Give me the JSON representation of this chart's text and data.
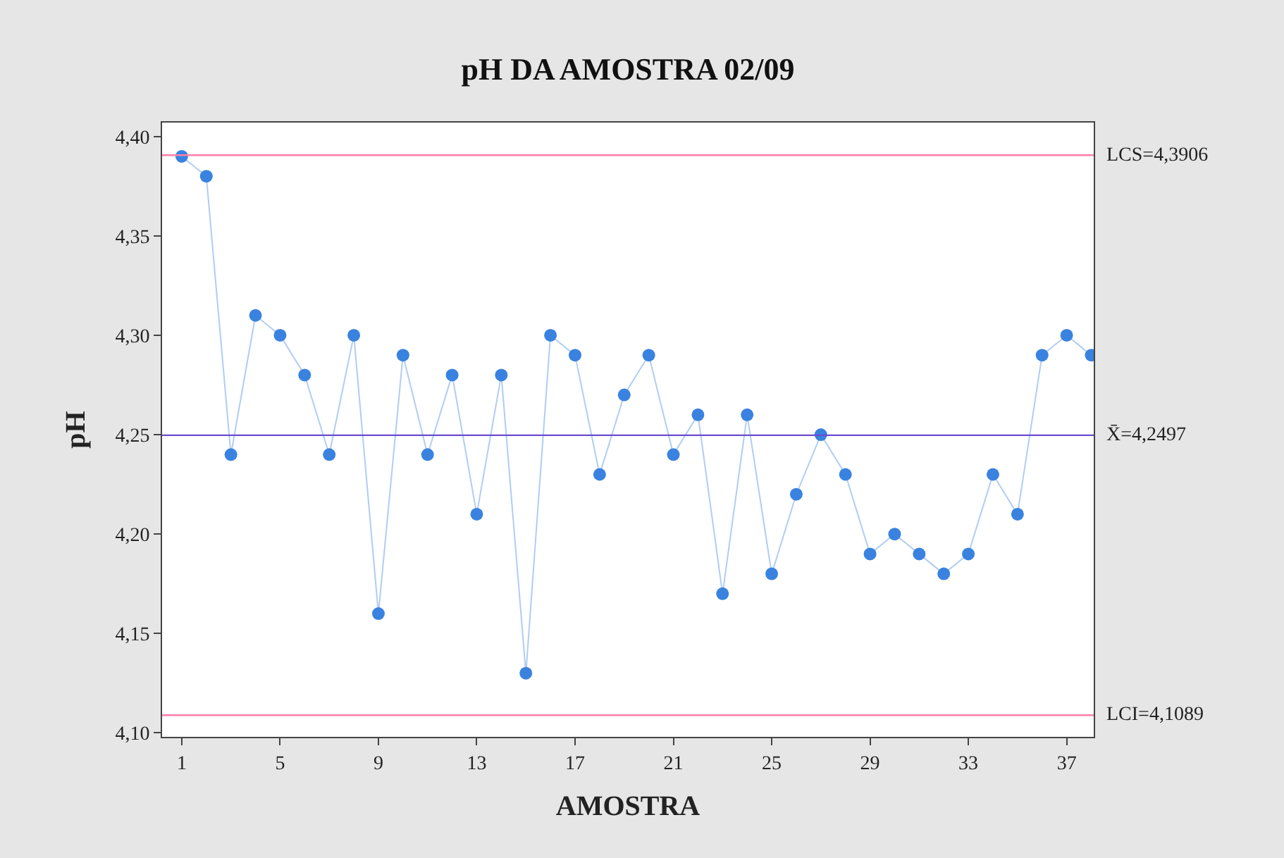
{
  "chart_data": {
    "type": "line",
    "title": "pH DA AMOSTRA 02/09",
    "xlabel": "AMOSTRA",
    "ylabel": "pH",
    "x": [
      1,
      2,
      3,
      4,
      5,
      6,
      7,
      8,
      9,
      10,
      11,
      12,
      13,
      14,
      15,
      16,
      17,
      18,
      19,
      20,
      21,
      22,
      23,
      24,
      25,
      26,
      27,
      28,
      29,
      30,
      31,
      32,
      33,
      34,
      35,
      36,
      37,
      38
    ],
    "series": [
      {
        "color": "#3a82e0",
        "values": [
          4.39,
          4.38,
          4.24,
          4.31,
          4.3,
          4.28,
          4.24,
          4.3,
          4.16,
          4.29,
          4.24,
          4.28,
          4.21,
          4.28,
          4.13,
          4.3,
          4.29,
          4.23,
          4.27,
          4.29,
          4.24,
          4.26,
          4.17,
          4.26,
          4.18,
          4.22,
          4.25,
          4.23,
          4.19,
          4.2,
          4.19,
          4.18,
          4.19,
          4.23,
          4.21,
          4.29,
          4.3,
          4.29
        ]
      }
    ],
    "xlim": [
      0.2,
      38.1
    ],
    "xticks": [
      1,
      5,
      9,
      13,
      17,
      21,
      25,
      29,
      33,
      37
    ],
    "ylim": [
      4.098,
      4.407
    ],
    "yticks": [
      {
        "value": 4.1,
        "label": "4,10"
      },
      {
        "value": 4.15,
        "label": "4,15"
      },
      {
        "value": 4.2,
        "label": "4,20"
      },
      {
        "value": 4.25,
        "label": "4,25"
      },
      {
        "value": 4.3,
        "label": "4,30"
      },
      {
        "value": 4.35,
        "label": "4,35"
      },
      {
        "value": 4.4,
        "label": "4,40"
      }
    ],
    "ref_lines": [
      {
        "axis": "y",
        "value": 4.3906,
        "label": "LCS=4,3906",
        "color": "#ff7faa",
        "line_style": "solid"
      },
      {
        "axis": "y",
        "value": 4.2497,
        "label": "X̄=4,2497",
        "color": "#6a4fcf",
        "line_style": "solid"
      },
      {
        "axis": "y",
        "value": 4.1089,
        "label": "LCI=4,1089",
        "color": "#ff7faa",
        "line_style": "solid"
      }
    ],
    "marker": "circle",
    "line_style": "solid"
  }
}
